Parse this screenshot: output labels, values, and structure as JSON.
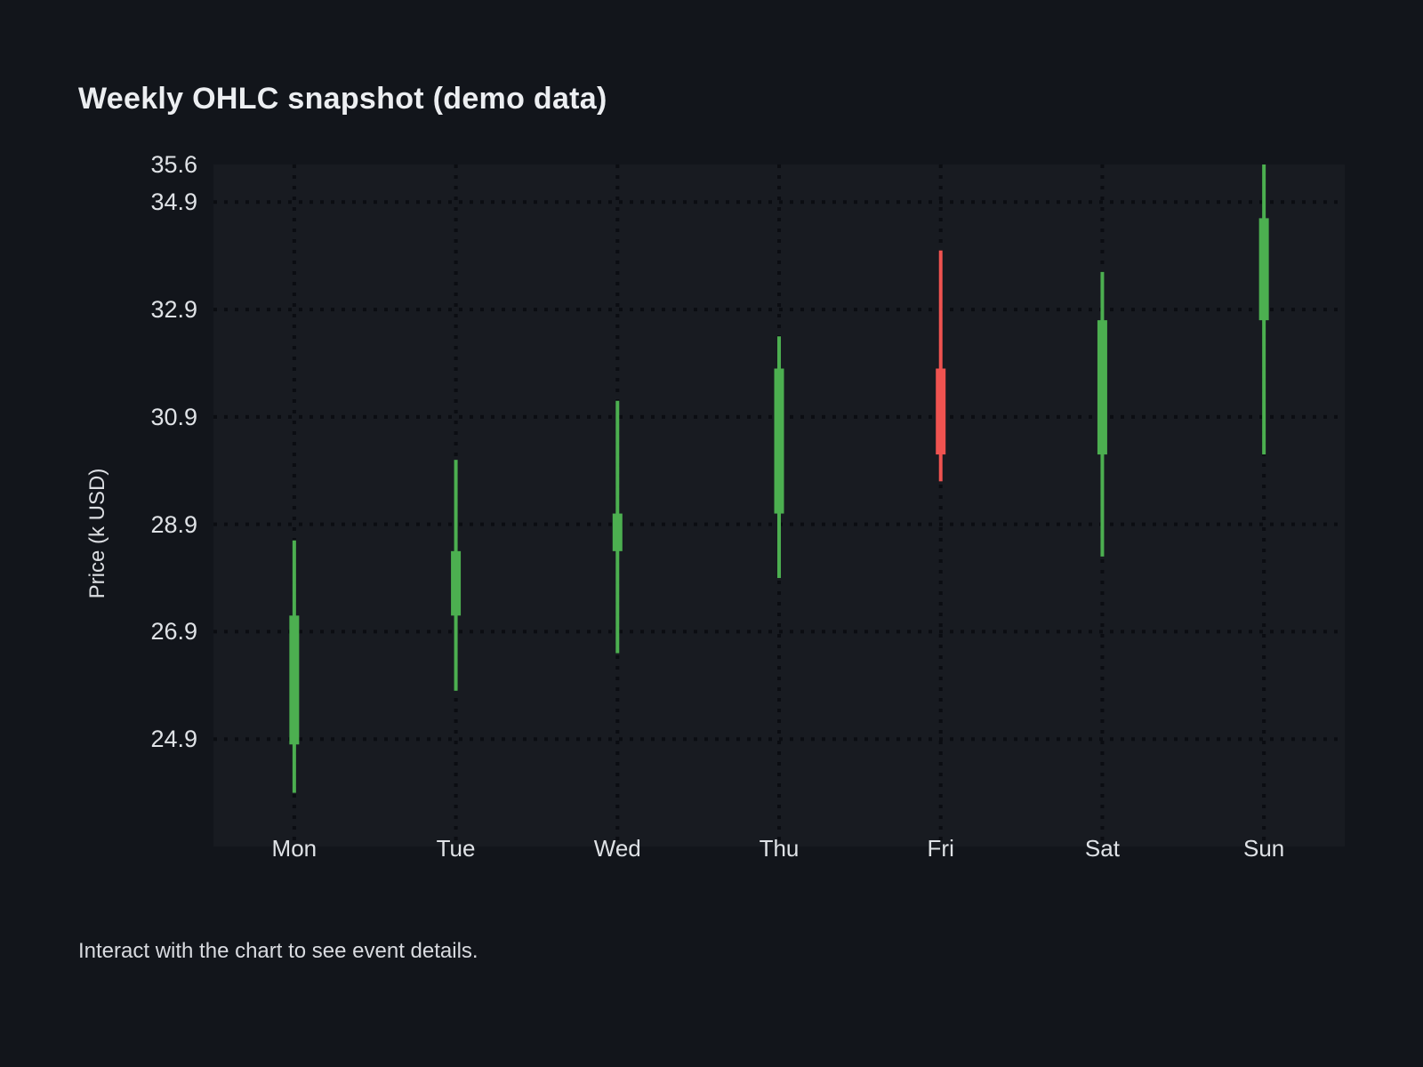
{
  "page": {
    "title": "Weekly OHLC snapshot (demo data)",
    "footer": "Interact with the chart to see event details.",
    "background_color": "#12151b",
    "plot_background_color": "#181b21"
  },
  "chart_data": {
    "type": "candlestick",
    "title": "Weekly OHLC snapshot (demo data)",
    "xlabel": "",
    "ylabel": "Price (k USD)",
    "categories": [
      "Mon",
      "Tue",
      "Wed",
      "Thu",
      "Fri",
      "Sat",
      "Sun"
    ],
    "ohlc": [
      {
        "day": "Mon",
        "open": 24.8,
        "high": 28.6,
        "low": 23.9,
        "close": 27.2,
        "direction": "up"
      },
      {
        "day": "Tue",
        "open": 27.2,
        "high": 30.1,
        "low": 25.8,
        "close": 28.4,
        "direction": "up"
      },
      {
        "day": "Wed",
        "open": 28.4,
        "high": 31.2,
        "low": 26.5,
        "close": 29.1,
        "direction": "up"
      },
      {
        "day": "Thu",
        "open": 29.1,
        "high": 32.4,
        "low": 27.9,
        "close": 31.8,
        "direction": "up"
      },
      {
        "day": "Fri",
        "open": 31.8,
        "high": 34.0,
        "low": 29.7,
        "close": 30.2,
        "direction": "down"
      },
      {
        "day": "Sat",
        "open": 30.2,
        "high": 33.6,
        "low": 28.3,
        "close": 32.7,
        "direction": "up"
      },
      {
        "day": "Sun",
        "open": 32.7,
        "high": 35.6,
        "low": 30.2,
        "close": 34.6,
        "direction": "up"
      }
    ],
    "yticks": [
      35.6,
      34.9,
      32.9,
      30.9,
      28.9,
      26.9,
      24.9
    ],
    "ylim": [
      22.9,
      35.6
    ],
    "grid": "dotted",
    "legend": "none",
    "colors": {
      "up": "#4caf50",
      "down": "#ef5350",
      "grid": "#0b0d12",
      "tick_text": "#dfe2e6"
    }
  }
}
